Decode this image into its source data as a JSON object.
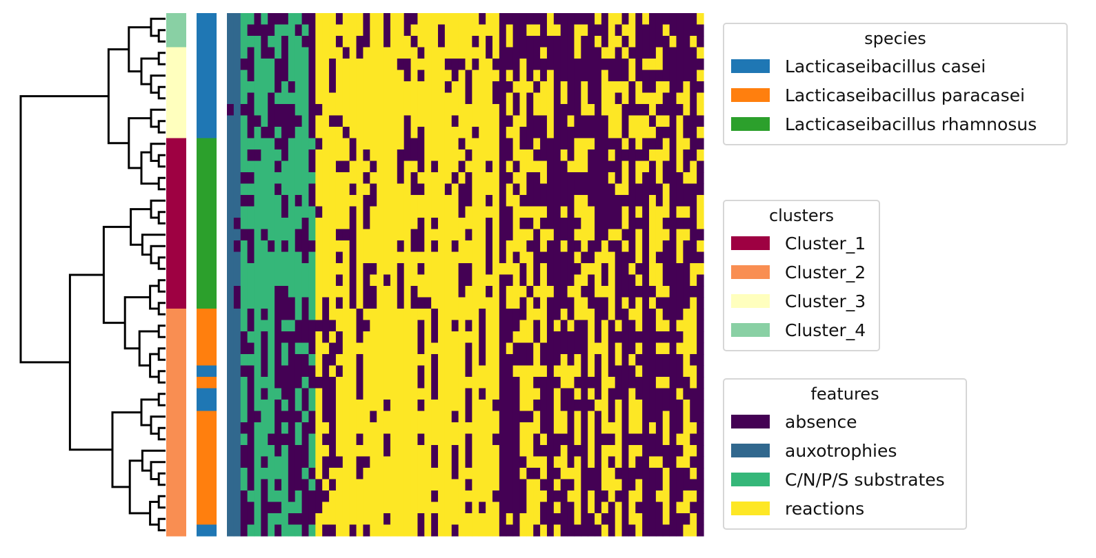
{
  "chart_data": {
    "type": "heatmap",
    "title": "",
    "xlabel": "",
    "ylabel": "",
    "n_rows": 46,
    "n_columns": 70,
    "dendrogram": "hierarchical clustering of rows (left)",
    "row_order_clusters": [
      "Cluster_4",
      "Cluster_4",
      "Cluster_4",
      "Cluster_3",
      "Cluster_3",
      "Cluster_3",
      "Cluster_3",
      "Cluster_3",
      "Cluster_3",
      "Cluster_3",
      "Cluster_3",
      "Cluster_1",
      "Cluster_1",
      "Cluster_1",
      "Cluster_1",
      "Cluster_1",
      "Cluster_1",
      "Cluster_1",
      "Cluster_1",
      "Cluster_1",
      "Cluster_1",
      "Cluster_1",
      "Cluster_1",
      "Cluster_1",
      "Cluster_1",
      "Cluster_1",
      "Cluster_2",
      "Cluster_2",
      "Cluster_2",
      "Cluster_2",
      "Cluster_2",
      "Cluster_2",
      "Cluster_2",
      "Cluster_2",
      "Cluster_2",
      "Cluster_2",
      "Cluster_2",
      "Cluster_2",
      "Cluster_2",
      "Cluster_2",
      "Cluster_2",
      "Cluster_2",
      "Cluster_2",
      "Cluster_2",
      "Cluster_2",
      "Cluster_2"
    ],
    "row_order_species": [
      "Lacticaseibacillus casei",
      "Lacticaseibacillus casei",
      "Lacticaseibacillus casei",
      "Lacticaseibacillus casei",
      "Lacticaseibacillus casei",
      "Lacticaseibacillus casei",
      "Lacticaseibacillus casei",
      "Lacticaseibacillus casei",
      "Lacticaseibacillus casei",
      "Lacticaseibacillus casei",
      "Lacticaseibacillus casei",
      "Lacticaseibacillus rhamnosus",
      "Lacticaseibacillus rhamnosus",
      "Lacticaseibacillus rhamnosus",
      "Lacticaseibacillus rhamnosus",
      "Lacticaseibacillus rhamnosus",
      "Lacticaseibacillus rhamnosus",
      "Lacticaseibacillus rhamnosus",
      "Lacticaseibacillus rhamnosus",
      "Lacticaseibacillus rhamnosus",
      "Lacticaseibacillus rhamnosus",
      "Lacticaseibacillus rhamnosus",
      "Lacticaseibacillus rhamnosus",
      "Lacticaseibacillus rhamnosus",
      "Lacticaseibacillus rhamnosus",
      "Lacticaseibacillus rhamnosus",
      "Lacticaseibacillus paracasei",
      "Lacticaseibacillus paracasei",
      "Lacticaseibacillus paracasei",
      "Lacticaseibacillus paracasei",
      "Lacticaseibacillus paracasei",
      "Lacticaseibacillus casei",
      "Lacticaseibacillus paracasei",
      "Lacticaseibacillus casei",
      "Lacticaseibacillus casei",
      "Lacticaseibacillus paracasei",
      "Lacticaseibacillus paracasei",
      "Lacticaseibacillus paracasei",
      "Lacticaseibacillus paracasei",
      "Lacticaseibacillus paracasei",
      "Lacticaseibacillus paracasei",
      "Lacticaseibacillus paracasei",
      "Lacticaseibacillus paracasei",
      "Lacticaseibacillus paracasei",
      "Lacticaseibacillus paracasei",
      "Lacticaseibacillus casei"
    ],
    "feature_column_groups": [
      {
        "feature": "auxotrophies",
        "columns": 2
      },
      {
        "feature": "C/N/P/S substrates",
        "columns": 11
      },
      {
        "feature": "reactions",
        "columns": 57
      }
    ],
    "legends": [
      {
        "title": "species",
        "entries": [
          {
            "label": "Lacticaseibacillus casei",
            "color": "#1f77b4"
          },
          {
            "label": "Lacticaseibacillus paracasei",
            "color": "#ff7f0e"
          },
          {
            "label": "Lacticaseibacillus rhamnosus",
            "color": "#2ca02c"
          }
        ]
      },
      {
        "title": "clusters",
        "entries": [
          {
            "label": "Cluster_1",
            "color": "#9e0142"
          },
          {
            "label": "Cluster_2",
            "color": "#f98e52"
          },
          {
            "label": "Cluster_3",
            "color": "#ffffbe"
          },
          {
            "label": "Cluster_4",
            "color": "#89d0a4"
          }
        ]
      },
      {
        "title": "features",
        "entries": [
          {
            "label": "absence",
            "color": "#440154"
          },
          {
            "label": "auxotrophies",
            "color": "#31688e"
          },
          {
            "label": "C/N/P/S substrates",
            "color": "#35b779"
          },
          {
            "label": "reactions",
            "color": "#fde725"
          }
        ]
      }
    ],
    "grid": false
  }
}
